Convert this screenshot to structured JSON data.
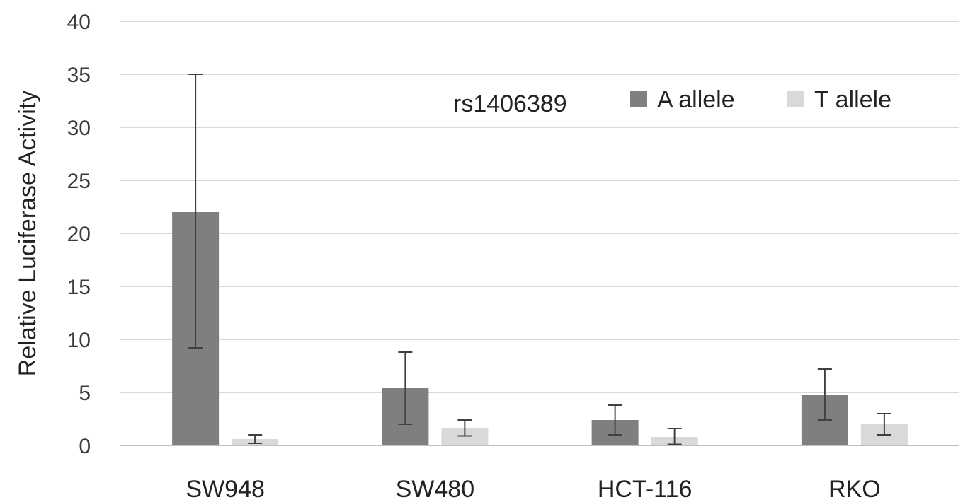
{
  "chart_data": {
    "type": "bar",
    "title": "",
    "xlabel": "",
    "ylabel": "Relative Luciferase Activity",
    "ylim": [
      0,
      40
    ],
    "yticks": [
      0,
      5,
      10,
      15,
      20,
      25,
      30,
      35,
      40
    ],
    "grid": true,
    "legend_title": "rs1406389",
    "legend_position": "top-right",
    "categories": [
      "SW948",
      "SW480",
      "HCT-116",
      "RKO"
    ],
    "series": [
      {
        "name": "A allele",
        "color": "#7f7f7f",
        "values": [
          22.0,
          5.4,
          2.4,
          4.8
        ],
        "error_low": [
          9.2,
          2.0,
          1.0,
          2.4
        ],
        "error_high": [
          35.0,
          8.8,
          3.8,
          7.2
        ]
      },
      {
        "name": "T allele",
        "color": "#d9d9d9",
        "values": [
          0.6,
          1.6,
          0.8,
          2.0
        ],
        "error_low": [
          0.2,
          0.9,
          0.1,
          1.0
        ],
        "error_high": [
          1.0,
          2.4,
          1.6,
          3.0
        ]
      }
    ]
  }
}
